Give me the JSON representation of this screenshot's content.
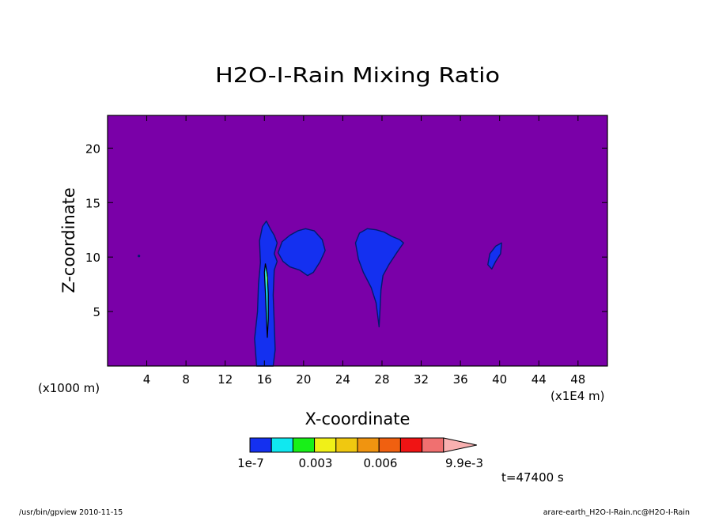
{
  "chart_data": {
    "type": "heatmap",
    "title": "H2O-I-Rain Mixing Ratio",
    "xlabel": "X-coordinate",
    "ylabel": "Z-coordinate",
    "x_unit_left": "(x1000 m)",
    "x_unit_right": "(x1E4 m)",
    "xlim": [
      0,
      51
    ],
    "ylim": [
      0,
      23
    ],
    "x_ticks": [
      4,
      8,
      12,
      16,
      20,
      24,
      28,
      32,
      36,
      40,
      44,
      48
    ],
    "x_tick_labels": [
      "4",
      "8",
      "12",
      "16",
      "20",
      "24",
      "28",
      "32",
      "36",
      "40",
      "44",
      "48"
    ],
    "y_ticks": [
      5,
      10,
      15,
      20
    ],
    "y_tick_labels": [
      "5",
      "10",
      "15",
      "20"
    ],
    "background_color": "#7a00a8",
    "field_color": "#1430f0",
    "outline_color": "#001a6e",
    "features": [
      {
        "name": "",
        "points": [
          [
            15.2,
            0
          ],
          [
            15.0,
            2.5
          ],
          [
            15.3,
            5
          ],
          [
            15.4,
            7.5
          ],
          [
            15.6,
            9.5
          ],
          [
            15.5,
            11.5
          ],
          [
            15.8,
            12.8
          ],
          [
            16.2,
            13.3
          ],
          [
            16.6,
            12.6
          ],
          [
            17.0,
            12.0
          ],
          [
            17.3,
            11.3
          ],
          [
            17.0,
            10.3
          ],
          [
            17.3,
            9.6
          ],
          [
            17.0,
            8.8
          ],
          [
            16.9,
            6.5
          ],
          [
            17.0,
            4.0
          ],
          [
            17.1,
            1.5
          ],
          [
            16.9,
            0
          ]
        ]
      },
      {
        "name": "",
        "points": [
          [
            17.4,
            10.4
          ],
          [
            17.8,
            11.4
          ],
          [
            18.6,
            12.0
          ],
          [
            19.4,
            12.4
          ],
          [
            20.2,
            12.6
          ],
          [
            21.1,
            12.4
          ],
          [
            21.9,
            11.6
          ],
          [
            22.2,
            10.6
          ],
          [
            21.7,
            9.6
          ],
          [
            21.0,
            8.6
          ],
          [
            20.4,
            8.3
          ],
          [
            19.6,
            8.8
          ],
          [
            18.6,
            9.1
          ],
          [
            17.9,
            9.6
          ]
        ]
      },
      {
        "name": "",
        "points": [
          [
            25.3,
            11.3
          ],
          [
            25.7,
            12.2
          ],
          [
            26.5,
            12.6
          ],
          [
            27.4,
            12.5
          ],
          [
            28.2,
            12.3
          ],
          [
            29.0,
            11.9
          ],
          [
            29.8,
            11.6
          ],
          [
            30.2,
            11.3
          ],
          [
            29.5,
            10.4
          ],
          [
            28.7,
            9.3
          ],
          [
            28.1,
            8.3
          ],
          [
            27.9,
            7.0
          ],
          [
            27.8,
            5.2
          ],
          [
            27.7,
            3.6
          ],
          [
            27.4,
            5.8
          ],
          [
            26.9,
            7.2
          ],
          [
            26.1,
            8.6
          ],
          [
            25.6,
            9.8
          ]
        ]
      },
      {
        "name": "",
        "points": [
          [
            38.8,
            9.3
          ],
          [
            39.0,
            10.3
          ],
          [
            39.6,
            11.0
          ],
          [
            40.2,
            11.3
          ],
          [
            40.1,
            10.3
          ],
          [
            39.6,
            9.6
          ],
          [
            39.2,
            8.9
          ]
        ]
      }
    ],
    "core_color": "#18d0e8",
    "core_points": [
      [
        16.1,
        9.4
      ],
      [
        16.3,
        8.4
      ],
      [
        16.4,
        6.6
      ],
      [
        16.4,
        4.3
      ],
      [
        16.3,
        2.6
      ],
      [
        16.2,
        4.5
      ],
      [
        16.1,
        6.8
      ],
      [
        16.0,
        8.6
      ]
    ],
    "core_outline": "#000000",
    "highlight_color": "#7cff4a",
    "highlight_points": [
      [
        16.15,
        8.9
      ],
      [
        16.3,
        8.1
      ],
      [
        16.3,
        7.2
      ],
      [
        16.2,
        7.8
      ]
    ],
    "dot": {
      "x": 3.2,
      "y": 10.1
    },
    "colorbar": {
      "colors": [
        "#1430f0",
        "#10e8f0",
        "#18f018",
        "#f0f018",
        "#f0c810",
        "#f09410",
        "#f06010",
        "#f01414",
        "#f07070",
        "#f8b0b0"
      ],
      "labels": [
        "1e-7",
        "0.003",
        "0.006",
        "9.9e-3"
      ]
    },
    "time_label": "t=47400 s"
  },
  "footer": {
    "left": "/usr/bin/gpview   2010-11-15",
    "right": "arare-earth_H2O-I-Rain.nc@H2O-I-Rain"
  }
}
